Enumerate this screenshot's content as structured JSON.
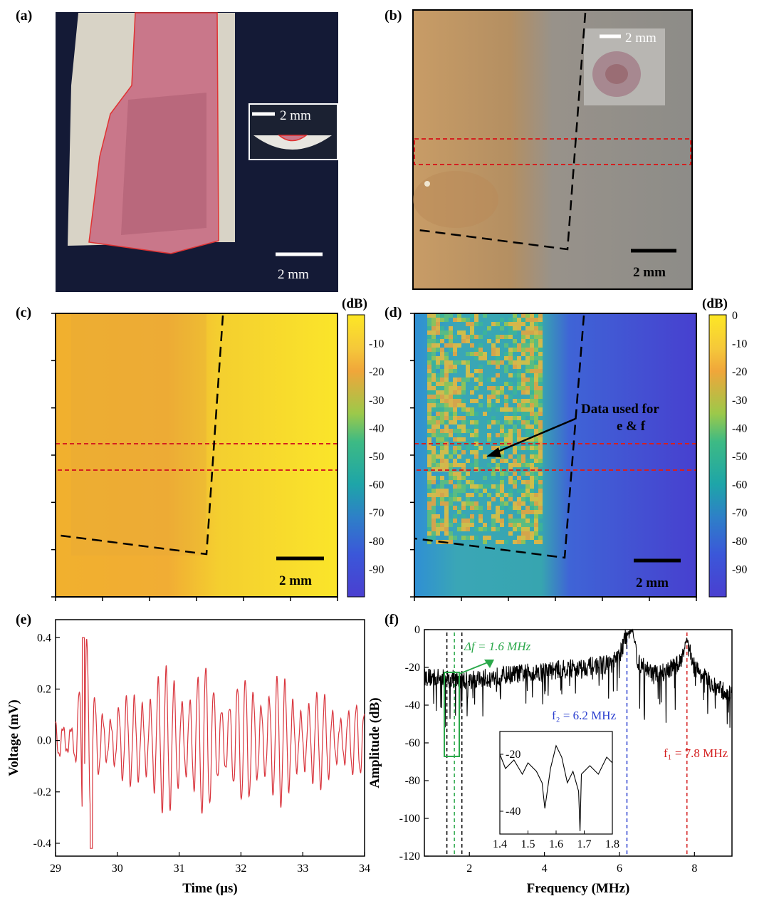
{
  "panels": {
    "a": {
      "label": "(a)",
      "scale_label": "2 mm",
      "inset_scale_label": "2 mm"
    },
    "b": {
      "label": "(b)",
      "scale_label": "2 mm",
      "inset_scale_label": "2 mm"
    },
    "c": {
      "label": "(c)",
      "scale_label": "2 mm",
      "colorbar_unit": "(dB)"
    },
    "d": {
      "label": "(d)",
      "scale_label": "2 mm",
      "colorbar_unit": "(dB)",
      "annotation_line1": "Data used for",
      "annotation_line2": "e & f"
    },
    "e": {
      "label": "(e)"
    },
    "f": {
      "label": "(f)",
      "delta_f": "Δf = 1.6 MHz",
      "f2": "f₂ = 6.2 MHz",
      "f1": "f₁ = 7.8 MHz"
    }
  },
  "colorbar": {
    "c_ticks": [
      "-10",
      "-20",
      "-30",
      "-40",
      "-50",
      "-60",
      "-70",
      "-80",
      "-90"
    ],
    "d_ticks": [
      "0",
      "-10",
      "-20",
      "-30",
      "-40",
      "-50",
      "-60",
      "-70",
      "-80",
      "-90"
    ],
    "colors": [
      "#fde725",
      "#f2a531",
      "#e8a040",
      "#4ec28a",
      "#1fa5a0",
      "#2a7ec0",
      "#3a5ad8",
      "#4a3fd9"
    ]
  },
  "chart_data": [
    {
      "type": "line",
      "panel": "e",
      "xlabel": "Time (μs)",
      "ylabel": "Voltage (mV)",
      "xlim": [
        29,
        34
      ],
      "ylim": [
        -0.45,
        0.47
      ],
      "xticks": [
        "29",
        "30",
        "31",
        "32",
        "33",
        "34"
      ],
      "yticks": [
        "0.4",
        "0.2",
        "0.0",
        "-0.2",
        "-0.4"
      ],
      "color": "#d9363e",
      "envelope": {
        "x": [
          29.0,
          29.3,
          29.45,
          29.5,
          29.6,
          29.9,
          30.2,
          30.4,
          30.6,
          31.0,
          31.2,
          31.4,
          31.6,
          31.8,
          32.0,
          32.2,
          32.6,
          32.8,
          33.0,
          33.2,
          33.4,
          33.6,
          33.8,
          34.0
        ],
        "amp": [
          0.08,
          0.1,
          0.4,
          0.42,
          0.2,
          0.14,
          0.17,
          0.24,
          0.28,
          0.28,
          0.26,
          0.3,
          0.25,
          0.22,
          0.24,
          0.26,
          0.26,
          0.22,
          0.2,
          0.18,
          0.18,
          0.15,
          0.15,
          0.12
        ]
      }
    },
    {
      "type": "line",
      "panel": "f",
      "xlabel": "Frequency (MHz)",
      "ylabel": "Amplitude (dB)",
      "xlim": [
        0.8,
        9
      ],
      "ylim": [
        -120,
        0
      ],
      "xticks": [
        "2",
        "4",
        "6",
        "8"
      ],
      "yticks": [
        "0",
        "-20",
        "-40",
        "-60",
        "-80",
        "-100",
        "-120"
      ],
      "baseline": {
        "x": [
          0.8,
          2.0,
          3.0,
          4.0,
          5.0,
          5.8,
          6.0,
          6.2,
          6.35,
          6.5,
          7.0,
          7.6,
          7.8,
          8.0,
          8.5,
          9.0
        ],
        "y": [
          -25,
          -27,
          -24,
          -22,
          -20,
          -18,
          -14,
          -2,
          0,
          -18,
          -24,
          -18,
          -5,
          -20,
          -30,
          -35
        ]
      },
      "markers": {
        "dashed_black": [
          1.4,
          1.8
        ],
        "dashed_green": [
          1.6
        ],
        "dashed_blue": [
          6.2
        ],
        "dashed_red": [
          7.8
        ]
      },
      "inset": {
        "xlim": [
          1.4,
          1.8
        ],
        "ylim": [
          -48,
          -12
        ],
        "xticks": [
          "1.4",
          "1.5",
          "1.6",
          "1.7",
          "1.8"
        ],
        "yticks": [
          "-20",
          "-40"
        ],
        "x": [
          1.4,
          1.42,
          1.45,
          1.48,
          1.5,
          1.53,
          1.55,
          1.56,
          1.58,
          1.6,
          1.62,
          1.64,
          1.66,
          1.68,
          1.685,
          1.69,
          1.72,
          1.75,
          1.78,
          1.8
        ],
        "y": [
          -20,
          -25,
          -22,
          -27,
          -23,
          -26,
          -30,
          -39,
          -25,
          -17,
          -21,
          -30,
          -26,
          -33,
          -47,
          -27,
          -24,
          -27,
          -21,
          -23
        ]
      }
    }
  ]
}
